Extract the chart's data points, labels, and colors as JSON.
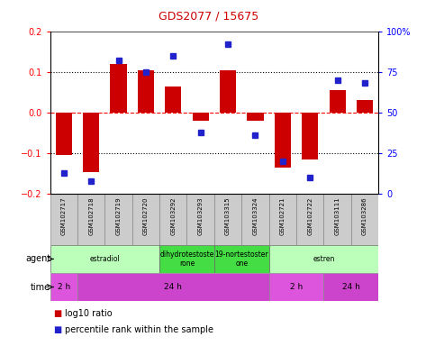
{
  "title": "GDS2077 / 15675",
  "samples": [
    "GSM102717",
    "GSM102718",
    "GSM102719",
    "GSM102720",
    "GSM103292",
    "GSM103293",
    "GSM103315",
    "GSM103324",
    "GSM102721",
    "GSM102722",
    "GSM103111",
    "GSM103286"
  ],
  "log10_ratio": [
    -0.105,
    -0.145,
    0.12,
    0.105,
    0.065,
    -0.02,
    0.105,
    -0.02,
    -0.135,
    -0.115,
    0.055,
    0.03
  ],
  "percentile": [
    13,
    8,
    82,
    75,
    85,
    38,
    92,
    36,
    20,
    10,
    70,
    68
  ],
  "ylim": [
    -0.2,
    0.2
  ],
  "y2lim": [
    0,
    100
  ],
  "yticks": [
    -0.2,
    -0.1,
    0.0,
    0.1,
    0.2
  ],
  "y2ticks": [
    0,
    25,
    50,
    75,
    100
  ],
  "hlines_dotted": [
    0.1,
    -0.1
  ],
  "hline_dashed": 0.0,
  "bar_color": "#cc0000",
  "dot_color": "#2222cc",
  "sample_box_color": "#cccccc",
  "agent_rows": [
    {
      "label": "estradiol",
      "start": 0,
      "end": 4,
      "color": "#bbffbb"
    },
    {
      "label": "dihydrotestoste\nrone",
      "start": 4,
      "end": 6,
      "color": "#44dd44"
    },
    {
      "label": "19-nortestoster\none",
      "start": 6,
      "end": 8,
      "color": "#44dd44"
    },
    {
      "label": "estren",
      "start": 8,
      "end": 12,
      "color": "#bbffbb"
    }
  ],
  "time_rows": [
    {
      "label": "2 h",
      "start": 0,
      "end": 1,
      "color": "#dd55dd"
    },
    {
      "label": "24 h",
      "start": 1,
      "end": 8,
      "color": "#cc44cc"
    },
    {
      "label": "2 h",
      "start": 8,
      "end": 10,
      "color": "#dd55dd"
    },
    {
      "label": "24 h",
      "start": 10,
      "end": 12,
      "color": "#cc44cc"
    }
  ],
  "legend_red": "log10 ratio",
  "legend_blue": "percentile rank within the sample",
  "figsize": [
    4.83,
    3.84
  ],
  "dpi": 100
}
